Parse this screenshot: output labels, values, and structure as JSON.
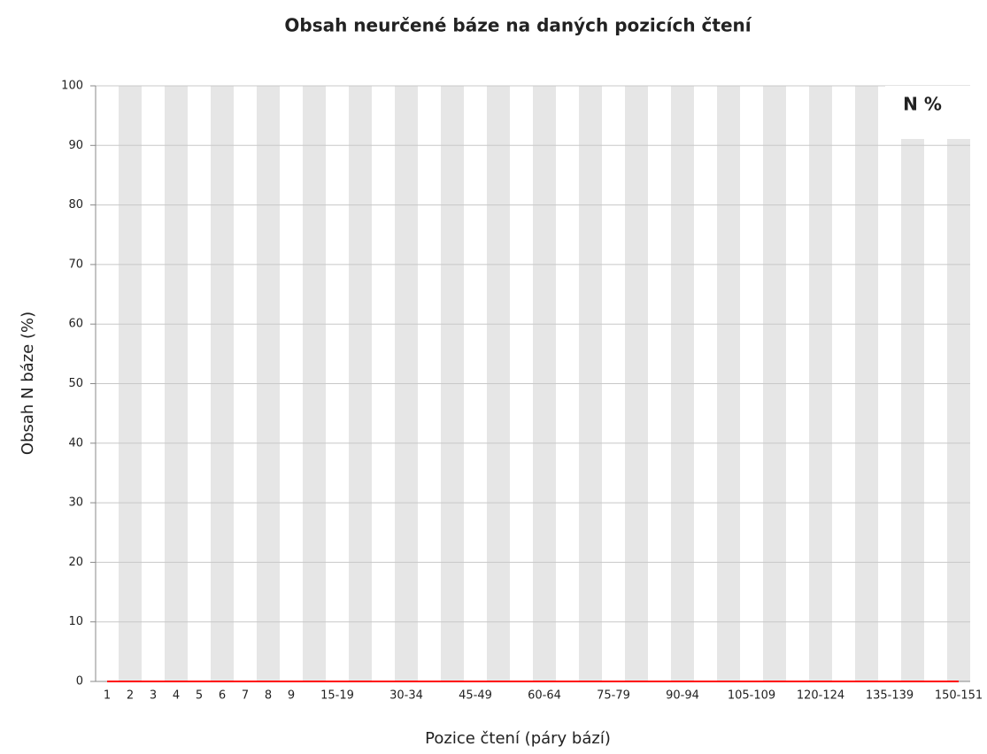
{
  "chart_data": {
    "type": "line",
    "title": "Obsah neurčené báze na daných pozicích čtení",
    "x_label": "Pozice čtení (páry bází)",
    "y_label": "Obsah N báze (%)",
    "categories": [
      "1",
      "2",
      "3",
      "4",
      "5",
      "6",
      "7",
      "8",
      "9",
      null,
      "15-19",
      null,
      null,
      "30-34",
      null,
      null,
      "45-49",
      null,
      null,
      "60-64",
      null,
      null,
      "75-79",
      null,
      null,
      "90-94",
      null,
      null,
      "105-109",
      null,
      null,
      "120-124",
      null,
      null,
      "135-139",
      null,
      null,
      "150-151"
    ],
    "series": [
      {
        "name": "N %",
        "color": "#ff0000",
        "values": [
          0,
          0,
          0,
          0,
          0,
          0,
          0,
          0,
          0,
          0,
          0,
          0,
          0,
          0,
          0,
          0,
          0,
          0,
          0,
          0,
          0,
          0,
          0,
          0,
          0,
          0,
          0,
          0,
          0,
          0,
          0,
          0,
          0,
          0,
          0,
          0,
          0,
          0
        ]
      }
    ],
    "ylim": [
      0,
      100
    ],
    "yticks": [
      0,
      10,
      20,
      30,
      40,
      50,
      60,
      70,
      80,
      90,
      100
    ],
    "grid": true,
    "legend": "top-right"
  }
}
